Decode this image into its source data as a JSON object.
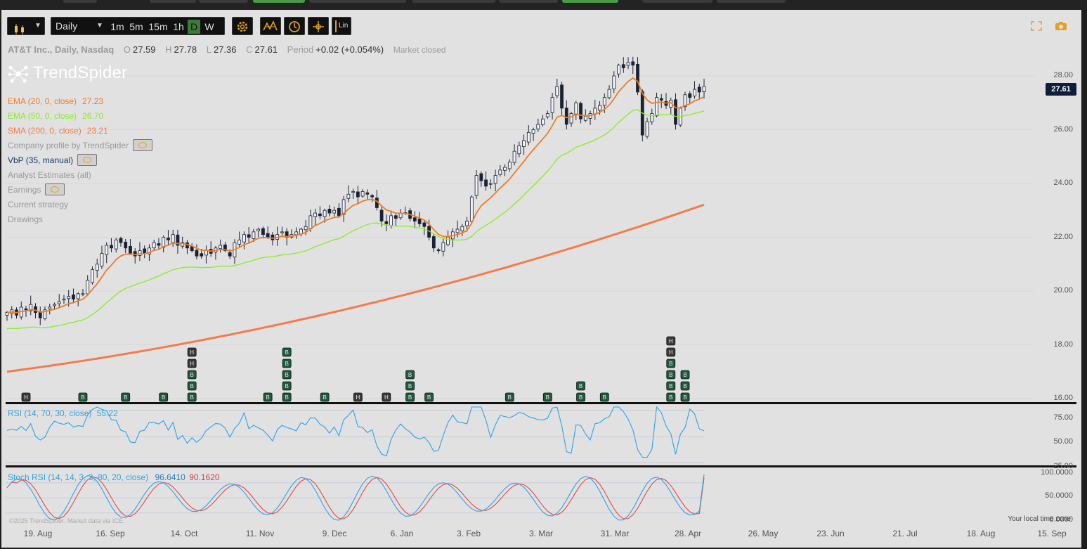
{
  "colors": {
    "ema20": "#f07c22",
    "ema50": "#88ee22",
    "sma200": "#f47c4a",
    "rsi": "#2aa4ea",
    "stoch_k": "#2aa4ea",
    "stoch_d": "#ef4444",
    "candle": "#1a2236",
    "signal_buy": "#1f5a3e",
    "signal_hold": "#3a3a3a",
    "price_tag": "#0d1d3a"
  },
  "toolbar": {
    "chart_type_icon": "candlestick-icon",
    "timeframe_select": "Daily",
    "timeframes": [
      "1m",
      "5m",
      "15m",
      "1h",
      "D",
      "W"
    ],
    "active_timeframe": "D",
    "settings_icon": "gear-icon",
    "tools": [
      "pattern-icon",
      "clock-icon",
      "crosshair-icon"
    ],
    "scale_button": "Lin"
  },
  "header": {
    "symbol": "AT&T Inc., Daily, Nasdaq",
    "open_label": "O",
    "open": "27.59",
    "high_label": "H",
    "high": "27.78",
    "low_label": "L",
    "low": "27.36",
    "close_label": "C",
    "close": "27.61",
    "period_label": "Period",
    "period_change": "+0.02 (+0.054%)",
    "market_status": "Market closed"
  },
  "logo_text": "TrendSpider",
  "indicators": [
    {
      "label": "EMA (20, 0, close)",
      "value": "27.23",
      "color": "#f07c22",
      "eye": false
    },
    {
      "label": "EMA (50, 0, close)",
      "value": "26.70",
      "color": "#88ee22",
      "eye": false
    },
    {
      "label": "SMA (200, 0, close)",
      "value": "23.21",
      "color": "#f47c4a",
      "eye": false
    },
    {
      "label": "Company profile by TrendSpider",
      "value": "",
      "color": "#999999",
      "eye": true
    },
    {
      "label": "VbP (35, manual)",
      "value": "",
      "color": "#1a3a6a",
      "eye": true
    },
    {
      "label": "Analyst Estimates (all)",
      "value": "",
      "color": "#999999",
      "eye": false
    },
    {
      "label": "Earnings",
      "value": "",
      "color": "#999999",
      "eye": true
    },
    {
      "label": "Current strategy",
      "value": "",
      "color": "#999999",
      "eye": false
    },
    {
      "label": "Drawings",
      "value": "",
      "color": "#999999",
      "eye": false
    }
  ],
  "right_icons": [
    "fullscreen-icon",
    "camera-icon"
  ],
  "price_axis": [
    "28.00",
    "26.00",
    "24.00",
    "22.00",
    "20.00",
    "18.00",
    "16.00"
  ],
  "last_price": "27.61",
  "rsi_panel": {
    "label": "RSI (14, 70, 30, close)",
    "value": "55.22",
    "axis": [
      "75.00",
      "50.00",
      "25.00"
    ]
  },
  "stoch_panel": {
    "label": "Stoch RSI (14, 14, 3, 3, 80, 20, close)",
    "value_k": "96.6410",
    "value_d": "90.1620",
    "axis": [
      "100.0000",
      "50.0000",
      "0.0000"
    ]
  },
  "time_axis": [
    "19. Aug",
    "16. Sep",
    "14. Oct",
    "11. Nov",
    "9. Dec",
    "6. Jan",
    "3. Feb",
    "3. Mar",
    "31. Mar",
    "28. Apr",
    "26. May",
    "23. Jun",
    "21. Jul",
    "18. Aug",
    "15. Sep"
  ],
  "footer_left": "©2025 TrendSpider. Market data via ICE.",
  "footer_right": "Your local time zone",
  "chart_data": {
    "type": "candlestick",
    "price_range": [
      16,
      29
    ],
    "ema20_last": 27.23,
    "ema50_last": 26.7,
    "sma200_last": 23.21,
    "close_series": [
      19.2,
      19.3,
      19.1,
      19.4,
      19.3,
      19.5,
      19.2,
      19.0,
      19.3,
      19.4,
      19.5,
      19.6,
      19.7,
      19.8,
      19.7,
      19.9,
      19.9,
      20.4,
      20.8,
      21.0,
      21.4,
      21.7,
      21.6,
      21.9,
      21.8,
      21.6,
      21.4,
      21.3,
      21.5,
      21.4,
      21.6,
      21.8,
      21.7,
      22.0,
      21.9,
      22.1,
      21.7,
      21.8,
      21.6,
      21.5,
      21.3,
      21.3,
      21.5,
      21.4,
      21.6,
      21.7,
      21.5,
      21.3,
      21.8,
      21.9,
      22.1,
      22.0,
      22.2,
      22.3,
      22.1,
      22.0,
      21.9,
      22.1,
      22.2,
      22.0,
      22.1,
      22.2,
      22.3,
      22.4,
      22.8,
      22.9,
      22.8,
      23.0,
      22.9,
      23.0,
      22.8,
      23.4,
      23.6,
      23.7,
      23.5,
      23.7,
      23.6,
      23.5,
      23.1,
      22.6,
      22.5,
      22.8,
      22.7,
      22.9,
      22.9,
      22.7,
      22.6,
      22.5,
      22.4,
      22.0,
      21.6,
      21.5,
      21.8,
      22.0,
      22.2,
      22.3,
      22.4,
      22.6,
      23.5,
      24.3,
      24.1,
      23.9,
      24.0,
      24.3,
      24.5,
      24.6,
      24.8,
      25.2,
      25.4,
      25.6,
      25.9,
      26.0,
      26.2,
      26.4,
      26.6,
      27.2,
      27.6,
      26.8,
      26.2,
      26.6,
      27.0,
      26.4,
      26.5,
      26.6,
      26.8,
      26.9,
      27.2,
      27.5,
      28.0,
      28.4,
      28.3,
      28.5,
      28.4,
      27.4,
      25.8,
      26.3,
      26.6,
      27.2,
      27.1,
      26.9,
      27.1,
      26.2,
      26.8,
      27.3,
      27.2,
      27.5,
      27.4,
      27.61
    ],
    "rsi_range": [
      25,
      80
    ],
    "rsi_last": 55.22,
    "stoch_range": [
      0,
      105
    ],
    "stoch_k_last": 96.641,
    "stoch_d_last": 90.162,
    "signals": [
      {
        "idx": 4,
        "labels": [
          "H"
        ]
      },
      {
        "idx": 16,
        "labels": [
          "B"
        ]
      },
      {
        "idx": 25,
        "labels": [
          "B"
        ]
      },
      {
        "idx": 33,
        "labels": [
          "B"
        ]
      },
      {
        "idx": 39,
        "labels": [
          "B",
          "B",
          "B",
          "H",
          "H"
        ]
      },
      {
        "idx": 55,
        "labels": [
          "B"
        ]
      },
      {
        "idx": 59,
        "labels": [
          "B",
          "B",
          "B",
          "B",
          "B"
        ]
      },
      {
        "idx": 67,
        "labels": [
          "B"
        ]
      },
      {
        "idx": 74,
        "labels": [
          "H"
        ]
      },
      {
        "idx": 80,
        "labels": [
          "H"
        ]
      },
      {
        "idx": 85,
        "labels": [
          "B",
          "B",
          "B"
        ]
      },
      {
        "idx": 89,
        "labels": [
          "B"
        ]
      },
      {
        "idx": 106,
        "labels": [
          "B"
        ]
      },
      {
        "idx": 114,
        "labels": [
          "B"
        ]
      },
      {
        "idx": 121,
        "labels": [
          "B",
          "B"
        ]
      },
      {
        "idx": 126,
        "labels": [
          "B"
        ]
      },
      {
        "idx": 140,
        "labels": [
          "B",
          "B",
          "B",
          "B",
          "H",
          "H"
        ]
      },
      {
        "idx": 143,
        "labels": [
          "B",
          "B",
          "B"
        ]
      }
    ]
  }
}
